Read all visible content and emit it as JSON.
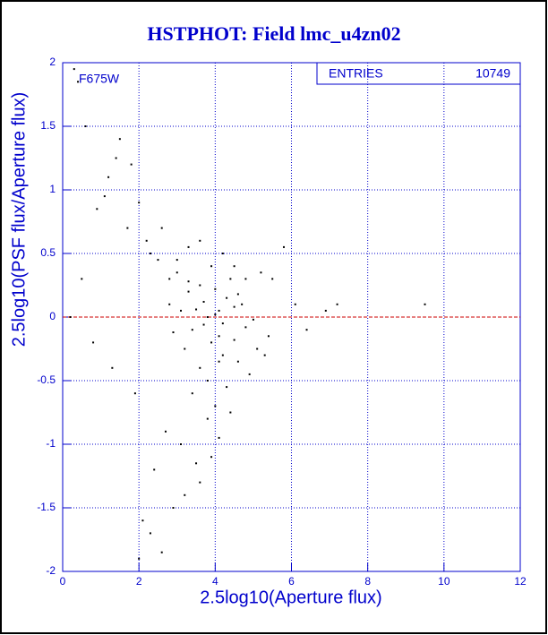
{
  "chart_data": {
    "type": "scatter",
    "title": "HSTPHOT: Field lmc_u4zn02",
    "x_label": "2.5log10(Aperture flux)",
    "y_label": "2.5log10(PSF flux/Aperture flux)",
    "annotation": "F675W",
    "stats": {
      "label": "ENTRIES",
      "value": 10749
    },
    "reference_line": {
      "value": 0,
      "color": "#cc0000"
    },
    "grid": true,
    "color": "#000000",
    "xlim": [
      0,
      12
    ],
    "xticks": [
      0,
      2,
      4,
      6,
      8,
      10,
      12
    ],
    "ylim": [
      -2,
      2
    ],
    "yticks": [
      -2,
      -1.5,
      -1,
      -0.5,
      0,
      0.5,
      1,
      1.5,
      2
    ],
    "x": [
      3.1,
      3.4,
      3.7,
      4.0,
      4.2,
      4.5,
      3.3,
      3.9,
      4.3,
      4.8,
      2.8,
      3.6,
      4.1,
      4.6,
      3.2,
      3.8,
      4.4,
      5.0,
      2.9,
      3.5,
      4.0,
      4.7,
      3.0,
      4.2,
      3.6,
      3.9,
      4.5,
      3.3,
      4.1,
      3.7,
      2.2,
      2.5,
      2.0,
      1.8,
      1.5,
      1.2,
      0.9,
      0.6,
      0.4,
      0.3,
      1.1,
      1.4,
      1.7,
      2.3,
      2.6,
      5.2,
      5.5,
      5.8,
      6.1,
      6.4,
      6.9,
      7.2,
      9.5,
      5.3,
      4.9,
      3.4,
      3.8,
      4.0,
      3.1,
      2.7,
      2.4,
      4.3,
      4.6,
      3.6,
      3.9,
      2.9,
      2.1,
      1.9,
      1.3,
      0.8,
      0.5,
      0.2,
      2.0,
      2.3,
      2.6,
      3.2,
      3.5,
      4.1,
      4.4,
      5.1,
      3.0,
      3.3,
      3.6,
      4.2,
      4.5,
      4.8,
      3.8,
      4.1,
      2.8,
      5.4
    ],
    "y": [
      0.05,
      -0.1,
      0.12,
      0.02,
      -0.05,
      0.08,
      0.2,
      -0.2,
      0.15,
      -0.08,
      0.1,
      0.25,
      -0.15,
      0.18,
      -0.25,
      0.0,
      0.3,
      -0.02,
      -0.12,
      0.06,
      0.22,
      0.1,
      0.35,
      -0.3,
      -0.4,
      0.4,
      -0.18,
      0.28,
      0.05,
      -0.06,
      0.6,
      0.45,
      0.9,
      1.2,
      1.4,
      1.1,
      0.85,
      1.5,
      1.85,
      1.95,
      0.95,
      1.25,
      0.7,
      0.5,
      0.7,
      0.35,
      0.3,
      0.55,
      0.1,
      -0.1,
      0.05,
      0.1,
      0.1,
      -0.3,
      -0.45,
      -0.6,
      -0.8,
      -0.7,
      -1.0,
      -0.9,
      -1.2,
      -0.55,
      -0.35,
      -1.3,
      -1.1,
      -1.5,
      -1.6,
      -0.6,
      -0.4,
      -0.2,
      0.3,
      0.0,
      -1.9,
      -1.7,
      -1.85,
      -1.4,
      -1.15,
      -0.95,
      -0.75,
      -0.25,
      0.45,
      0.55,
      0.6,
      0.5,
      0.4,
      0.3,
      -0.5,
      -0.35,
      0.3,
      -0.15
    ]
  }
}
